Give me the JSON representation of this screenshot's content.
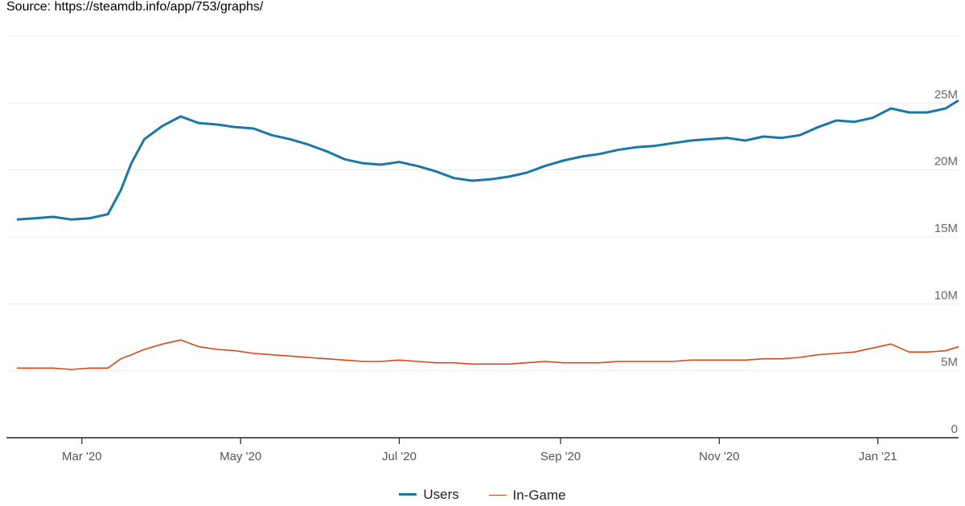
{
  "source_label": "Source: https://steamdb.info/app/753/graphs/",
  "chart_data": {
    "type": "line",
    "title": "",
    "xlabel": "",
    "ylabel": "",
    "x_range": [
      "2020-02-01",
      "2021-02-01"
    ],
    "ylim": [
      0,
      30000000
    ],
    "y_ticks": [
      {
        "value": 0,
        "label": "0"
      },
      {
        "value": 5000000,
        "label": "5M"
      },
      {
        "value": 10000000,
        "label": "10M"
      },
      {
        "value": 15000000,
        "label": "15M"
      },
      {
        "value": 20000000,
        "label": "20M"
      },
      {
        "value": 25000000,
        "label": "25M"
      }
    ],
    "x_ticks": [
      {
        "date": "2020-03-01",
        "label": "Mar '20"
      },
      {
        "date": "2020-05-01",
        "label": "May '20"
      },
      {
        "date": "2020-07-01",
        "label": "Jul '20"
      },
      {
        "date": "2020-09-01",
        "label": "Sep '20"
      },
      {
        "date": "2020-11-01",
        "label": "Nov '20"
      },
      {
        "date": "2021-01-01",
        "label": "Jan '21"
      }
    ],
    "series": [
      {
        "name": "Users",
        "color": "#1b77a8",
        "x": [
          "2020-02-05",
          "2020-02-12",
          "2020-02-19",
          "2020-02-26",
          "2020-03-04",
          "2020-03-11",
          "2020-03-16",
          "2020-03-20",
          "2020-03-25",
          "2020-04-01",
          "2020-04-08",
          "2020-04-15",
          "2020-04-22",
          "2020-04-29",
          "2020-05-06",
          "2020-05-13",
          "2020-05-20",
          "2020-05-27",
          "2020-06-03",
          "2020-06-10",
          "2020-06-17",
          "2020-06-24",
          "2020-07-01",
          "2020-07-08",
          "2020-07-15",
          "2020-07-22",
          "2020-07-29",
          "2020-08-05",
          "2020-08-12",
          "2020-08-19",
          "2020-08-26",
          "2020-09-02",
          "2020-09-09",
          "2020-09-16",
          "2020-09-23",
          "2020-09-30",
          "2020-10-07",
          "2020-10-14",
          "2020-10-21",
          "2020-10-28",
          "2020-11-04",
          "2020-11-11",
          "2020-11-18",
          "2020-11-25",
          "2020-12-02",
          "2020-12-09",
          "2020-12-16",
          "2020-12-23",
          "2020-12-30",
          "2021-01-06",
          "2021-01-13",
          "2021-01-20",
          "2021-01-27",
          "2021-02-01"
        ],
        "values": [
          16300000,
          16400000,
          16500000,
          16300000,
          16400000,
          16700000,
          18500000,
          20500000,
          22300000,
          23300000,
          24000000,
          23500000,
          23400000,
          23200000,
          23100000,
          22600000,
          22300000,
          21900000,
          21400000,
          20800000,
          20500000,
          20400000,
          20600000,
          20300000,
          19900000,
          19400000,
          19200000,
          19300000,
          19500000,
          19800000,
          20300000,
          20700000,
          21000000,
          21200000,
          21500000,
          21700000,
          21800000,
          22000000,
          22200000,
          22300000,
          22400000,
          22200000,
          22500000,
          22400000,
          22600000,
          23200000,
          23700000,
          23600000,
          23900000,
          24600000,
          24300000,
          24300000,
          24600000,
          25200000
        ]
      },
      {
        "name": "In-Game",
        "color": "#d9461a",
        "x": [
          "2020-02-05",
          "2020-02-12",
          "2020-02-19",
          "2020-02-26",
          "2020-03-04",
          "2020-03-11",
          "2020-03-16",
          "2020-03-20",
          "2020-03-25",
          "2020-04-01",
          "2020-04-08",
          "2020-04-15",
          "2020-04-22",
          "2020-04-29",
          "2020-05-06",
          "2020-05-13",
          "2020-05-20",
          "2020-05-27",
          "2020-06-03",
          "2020-06-10",
          "2020-06-17",
          "2020-06-24",
          "2020-07-01",
          "2020-07-08",
          "2020-07-15",
          "2020-07-22",
          "2020-07-29",
          "2020-08-05",
          "2020-08-12",
          "2020-08-19",
          "2020-08-26",
          "2020-09-02",
          "2020-09-09",
          "2020-09-16",
          "2020-09-23",
          "2020-09-30",
          "2020-10-07",
          "2020-10-14",
          "2020-10-21",
          "2020-10-28",
          "2020-11-04",
          "2020-11-11",
          "2020-11-18",
          "2020-11-25",
          "2020-12-02",
          "2020-12-09",
          "2020-12-16",
          "2020-12-23",
          "2020-12-30",
          "2021-01-06",
          "2021-01-13",
          "2021-01-20",
          "2021-01-27",
          "2021-02-01"
        ],
        "values": [
          5200000,
          5200000,
          5200000,
          5100000,
          5200000,
          5200000,
          5900000,
          6200000,
          6600000,
          7000000,
          7300000,
          6800000,
          6600000,
          6500000,
          6300000,
          6200000,
          6100000,
          6000000,
          5900000,
          5800000,
          5700000,
          5700000,
          5800000,
          5700000,
          5600000,
          5600000,
          5500000,
          5500000,
          5500000,
          5600000,
          5700000,
          5600000,
          5600000,
          5600000,
          5700000,
          5700000,
          5700000,
          5700000,
          5800000,
          5800000,
          5800000,
          5800000,
          5900000,
          5900000,
          6000000,
          6200000,
          6300000,
          6400000,
          6700000,
          7000000,
          6400000,
          6400000,
          6500000,
          6800000
        ]
      }
    ]
  }
}
